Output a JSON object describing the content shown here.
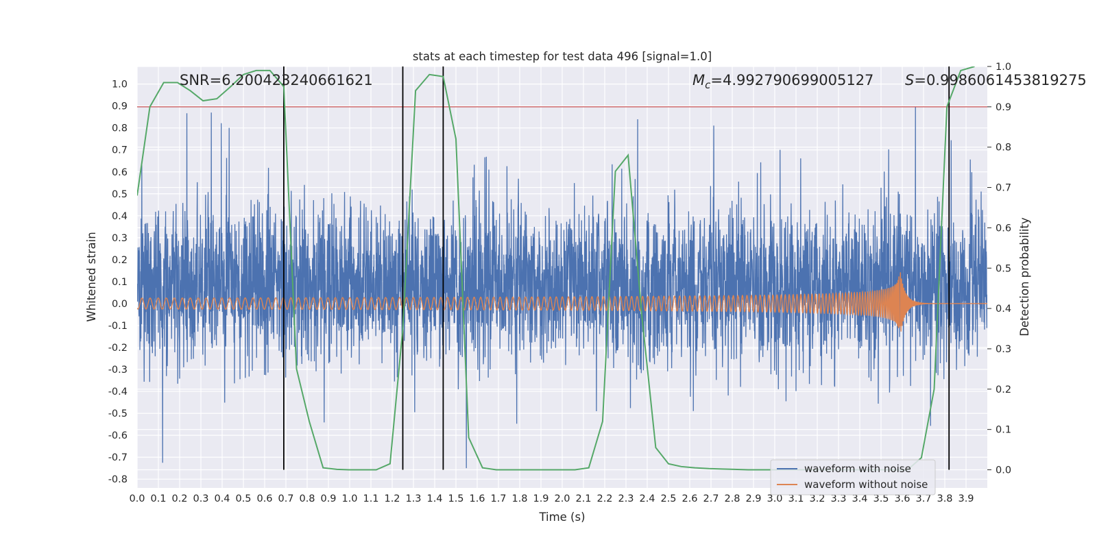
{
  "chart_data": {
    "type": "line",
    "title": "stats at each timestep for test data 496 [signal=1.0]",
    "xlabel": "Time (s)",
    "ylabel": "Whitened strain",
    "ylabel_right": "Detection probability",
    "xlim": [
      0.0,
      4.0
    ],
    "ylim": [
      -0.84,
      1.08
    ],
    "ylim_right": [
      -0.045,
      1.0
    ],
    "xticks": [
      "0.0",
      "0.1",
      "0.2",
      "0.3",
      "0.4",
      "0.5",
      "0.6",
      "0.7",
      "0.8",
      "0.9",
      "1.0",
      "1.1",
      "1.2",
      "1.3",
      "1.4",
      "1.5",
      "1.6",
      "1.7",
      "1.8",
      "1.9",
      "2.0",
      "2.1",
      "2.2",
      "2.3",
      "2.4",
      "2.5",
      "2.6",
      "2.7",
      "2.8",
      "2.9",
      "3.0",
      "3.1",
      "3.2",
      "3.3",
      "3.4",
      "3.5",
      "3.6",
      "3.7",
      "3.8",
      "3.9"
    ],
    "yticks": [
      "1.0",
      "0.9",
      "0.8",
      "0.7",
      "0.6",
      "0.5",
      "0.4",
      "0.3",
      "0.2",
      "0.1",
      "0.0",
      "-0.1",
      "-0.2",
      "-0.3",
      "-0.4",
      "-0.5",
      "-0.6",
      "-0.7",
      "-0.8"
    ],
    "yticks_right": [
      "1.0",
      "0.9",
      "0.8",
      "0.7",
      "0.6",
      "0.5",
      "0.4",
      "0.3",
      "0.2",
      "0.1",
      "0.0"
    ],
    "annotations": {
      "snr": "SNR=6.200423240661621",
      "mc_symbol": "M",
      "mc_sub": "c",
      "mc_value": "=4.992790699005127",
      "s_symbol": "S",
      "s_value": "=0.9986061453819275"
    },
    "threshold": 0.9,
    "vlines": [
      0.69,
      1.25,
      1.44,
      3.82
    ],
    "series": [
      {
        "name": "waveform with noise",
        "color": "#4c72b0",
        "description": "whitened strain with Gaussian noise, sampled densely over 0-4 s",
        "amplitude_range": [
          -0.75,
          1.0
        ]
      },
      {
        "name": "waveform without noise",
        "color": "#dd8452",
        "chirp_start_freq_hz": 26,
        "chirp_merger_time_s": 3.59,
        "amplitude_start": 0.025,
        "amplitude_peak": 0.15
      },
      {
        "name": "detection probability",
        "color": "#55a868",
        "axis": "right",
        "x": [
          0.0,
          0.06,
          0.125,
          0.19,
          0.25,
          0.31,
          0.375,
          0.44,
          0.5,
          0.56,
          0.625,
          0.69,
          0.75,
          0.81,
          0.875,
          0.94,
          1.0,
          1.06,
          1.125,
          1.19,
          1.25,
          1.31,
          1.375,
          1.44,
          1.5,
          1.56,
          1.625,
          1.69,
          1.75,
          1.81,
          1.875,
          1.94,
          2.0,
          2.06,
          2.125,
          2.19,
          2.25,
          2.31,
          2.375,
          2.44,
          2.5,
          2.56,
          2.625,
          2.69,
          2.75,
          2.81,
          2.875,
          2.94,
          3.0,
          3.06,
          3.125,
          3.19,
          3.25,
          3.31,
          3.375,
          3.44,
          3.5,
          3.56,
          3.625,
          3.69,
          3.75,
          3.81,
          3.875,
          3.94
        ],
        "y": [
          0.68,
          0.9,
          0.96,
          0.96,
          0.94,
          0.915,
          0.92,
          0.95,
          0.98,
          0.99,
          0.99,
          0.95,
          0.25,
          0.12,
          0.005,
          0.001,
          0.0,
          0.0,
          0.0,
          0.015,
          0.35,
          0.94,
          0.98,
          0.975,
          0.82,
          0.08,
          0.005,
          0.0,
          0.0,
          0.0,
          0.0,
          0.0,
          0.0,
          0.0,
          0.005,
          0.12,
          0.74,
          0.78,
          0.38,
          0.055,
          0.015,
          0.008,
          0.005,
          0.003,
          0.002,
          0.001,
          0.0,
          0.0,
          0.0,
          0.0,
          0.0,
          0.0,
          0.0,
          0.0,
          0.0,
          0.0,
          0.0,
          0.0,
          0.0,
          0.03,
          0.2,
          0.9,
          0.99,
          1.0
        ]
      }
    ],
    "legend": {
      "placement": "lower-right",
      "entries": [
        "waveform with noise",
        "waveform without noise"
      ]
    },
    "colors": {
      "background": "#eaeaf2",
      "grid": "#ffffff",
      "threshold": "#c44e52",
      "vline": "#000000"
    }
  }
}
